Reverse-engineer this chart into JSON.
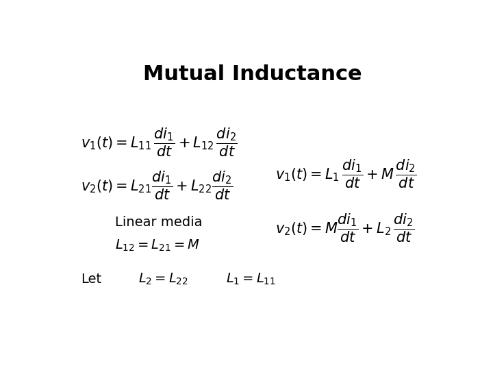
{
  "title": "Mutual Inductance",
  "title_fontsize": 22,
  "title_fontweight": "bold",
  "background_color": "#ffffff",
  "text_color": "#000000",
  "linear_media": "Linear media",
  "let_line": "Let",
  "eq_fontsize": 15,
  "small_fontsize": 14
}
